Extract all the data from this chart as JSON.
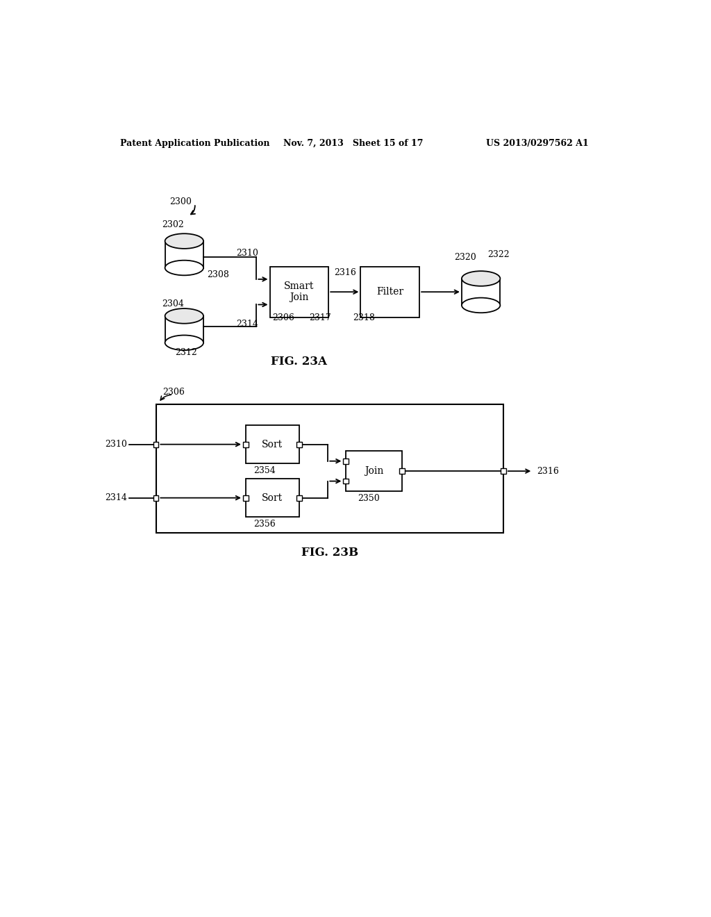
{
  "bg_color": "#ffffff",
  "header_left": "Patent Application Publication",
  "header_mid": "Nov. 7, 2013   Sheet 15 of 17",
  "header_right": "US 2013/0297562 A1",
  "fig_a_label": "FIG. 23A",
  "fig_b_label": "FIG. 23B",
  "label_2300": "2300",
  "label_2302": "2302",
  "label_2304": "2304",
  "label_2308": "2308",
  "label_2310a": "2310",
  "label_2312": "2312",
  "label_2314a": "2314",
  "label_2306a": "2306",
  "label_2317": "2317",
  "label_2316a": "2316",
  "label_2318": "2318",
  "label_2320": "2320",
  "label_2322": "2322",
  "label_smartjoin": "Smart\nJoin",
  "label_filter": "Filter",
  "label_2306b": "2306",
  "label_2310b": "2310",
  "label_2314b": "2314",
  "label_2316b": "2316",
  "label_2350": "2350",
  "label_2354": "2354",
  "label_2356": "2356",
  "label_sort1": "Sort",
  "label_sort2": "Sort",
  "label_join": "Join"
}
